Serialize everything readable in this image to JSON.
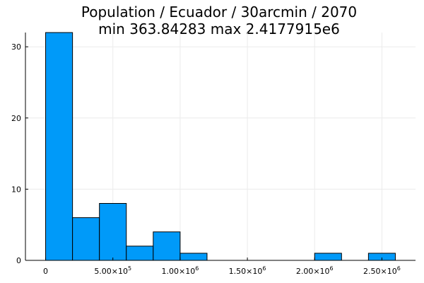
{
  "chart_data": {
    "type": "histogram",
    "title_line1": "Population / Ecuador / 30arcmin / 2070",
    "title_line2": "min 363.84283  max 2.4177915e6",
    "xlabel": "",
    "ylabel": "",
    "bin_width": 200000,
    "bins": [
      {
        "start": 0,
        "end": 200000,
        "count": 32
      },
      {
        "start": 200000,
        "end": 400000,
        "count": 6
      },
      {
        "start": 400000,
        "end": 600000,
        "count": 8
      },
      {
        "start": 600000,
        "end": 800000,
        "count": 2
      },
      {
        "start": 800000,
        "end": 1000000,
        "count": 4
      },
      {
        "start": 1000000,
        "end": 1200000,
        "count": 1
      },
      {
        "start": 2000000,
        "end": 2200000,
        "count": 1
      },
      {
        "start": 2400000,
        "end": 2600000,
        "count": 1
      }
    ],
    "xlim": [
      -150000,
      2750000
    ],
    "ylim": [
      0,
      32
    ],
    "x_ticks": [
      {
        "value": 0,
        "base": "0",
        "exp": ""
      },
      {
        "value": 500000,
        "base": "5.00×10",
        "exp": "5"
      },
      {
        "value": 1000000,
        "base": "1.00×10",
        "exp": "6"
      },
      {
        "value": 1500000,
        "base": "1.50×10",
        "exp": "6"
      },
      {
        "value": 2000000,
        "base": "2.00×10",
        "exp": "6"
      },
      {
        "value": 2500000,
        "base": "2.50×10",
        "exp": "6"
      }
    ],
    "y_ticks": [
      0,
      10,
      20,
      30
    ],
    "grid": true,
    "legend": "none",
    "bar_color": "#009af9",
    "bar_stroke": "#000000",
    "axis_color": "#000000",
    "grid_color": "#ebebeb"
  }
}
